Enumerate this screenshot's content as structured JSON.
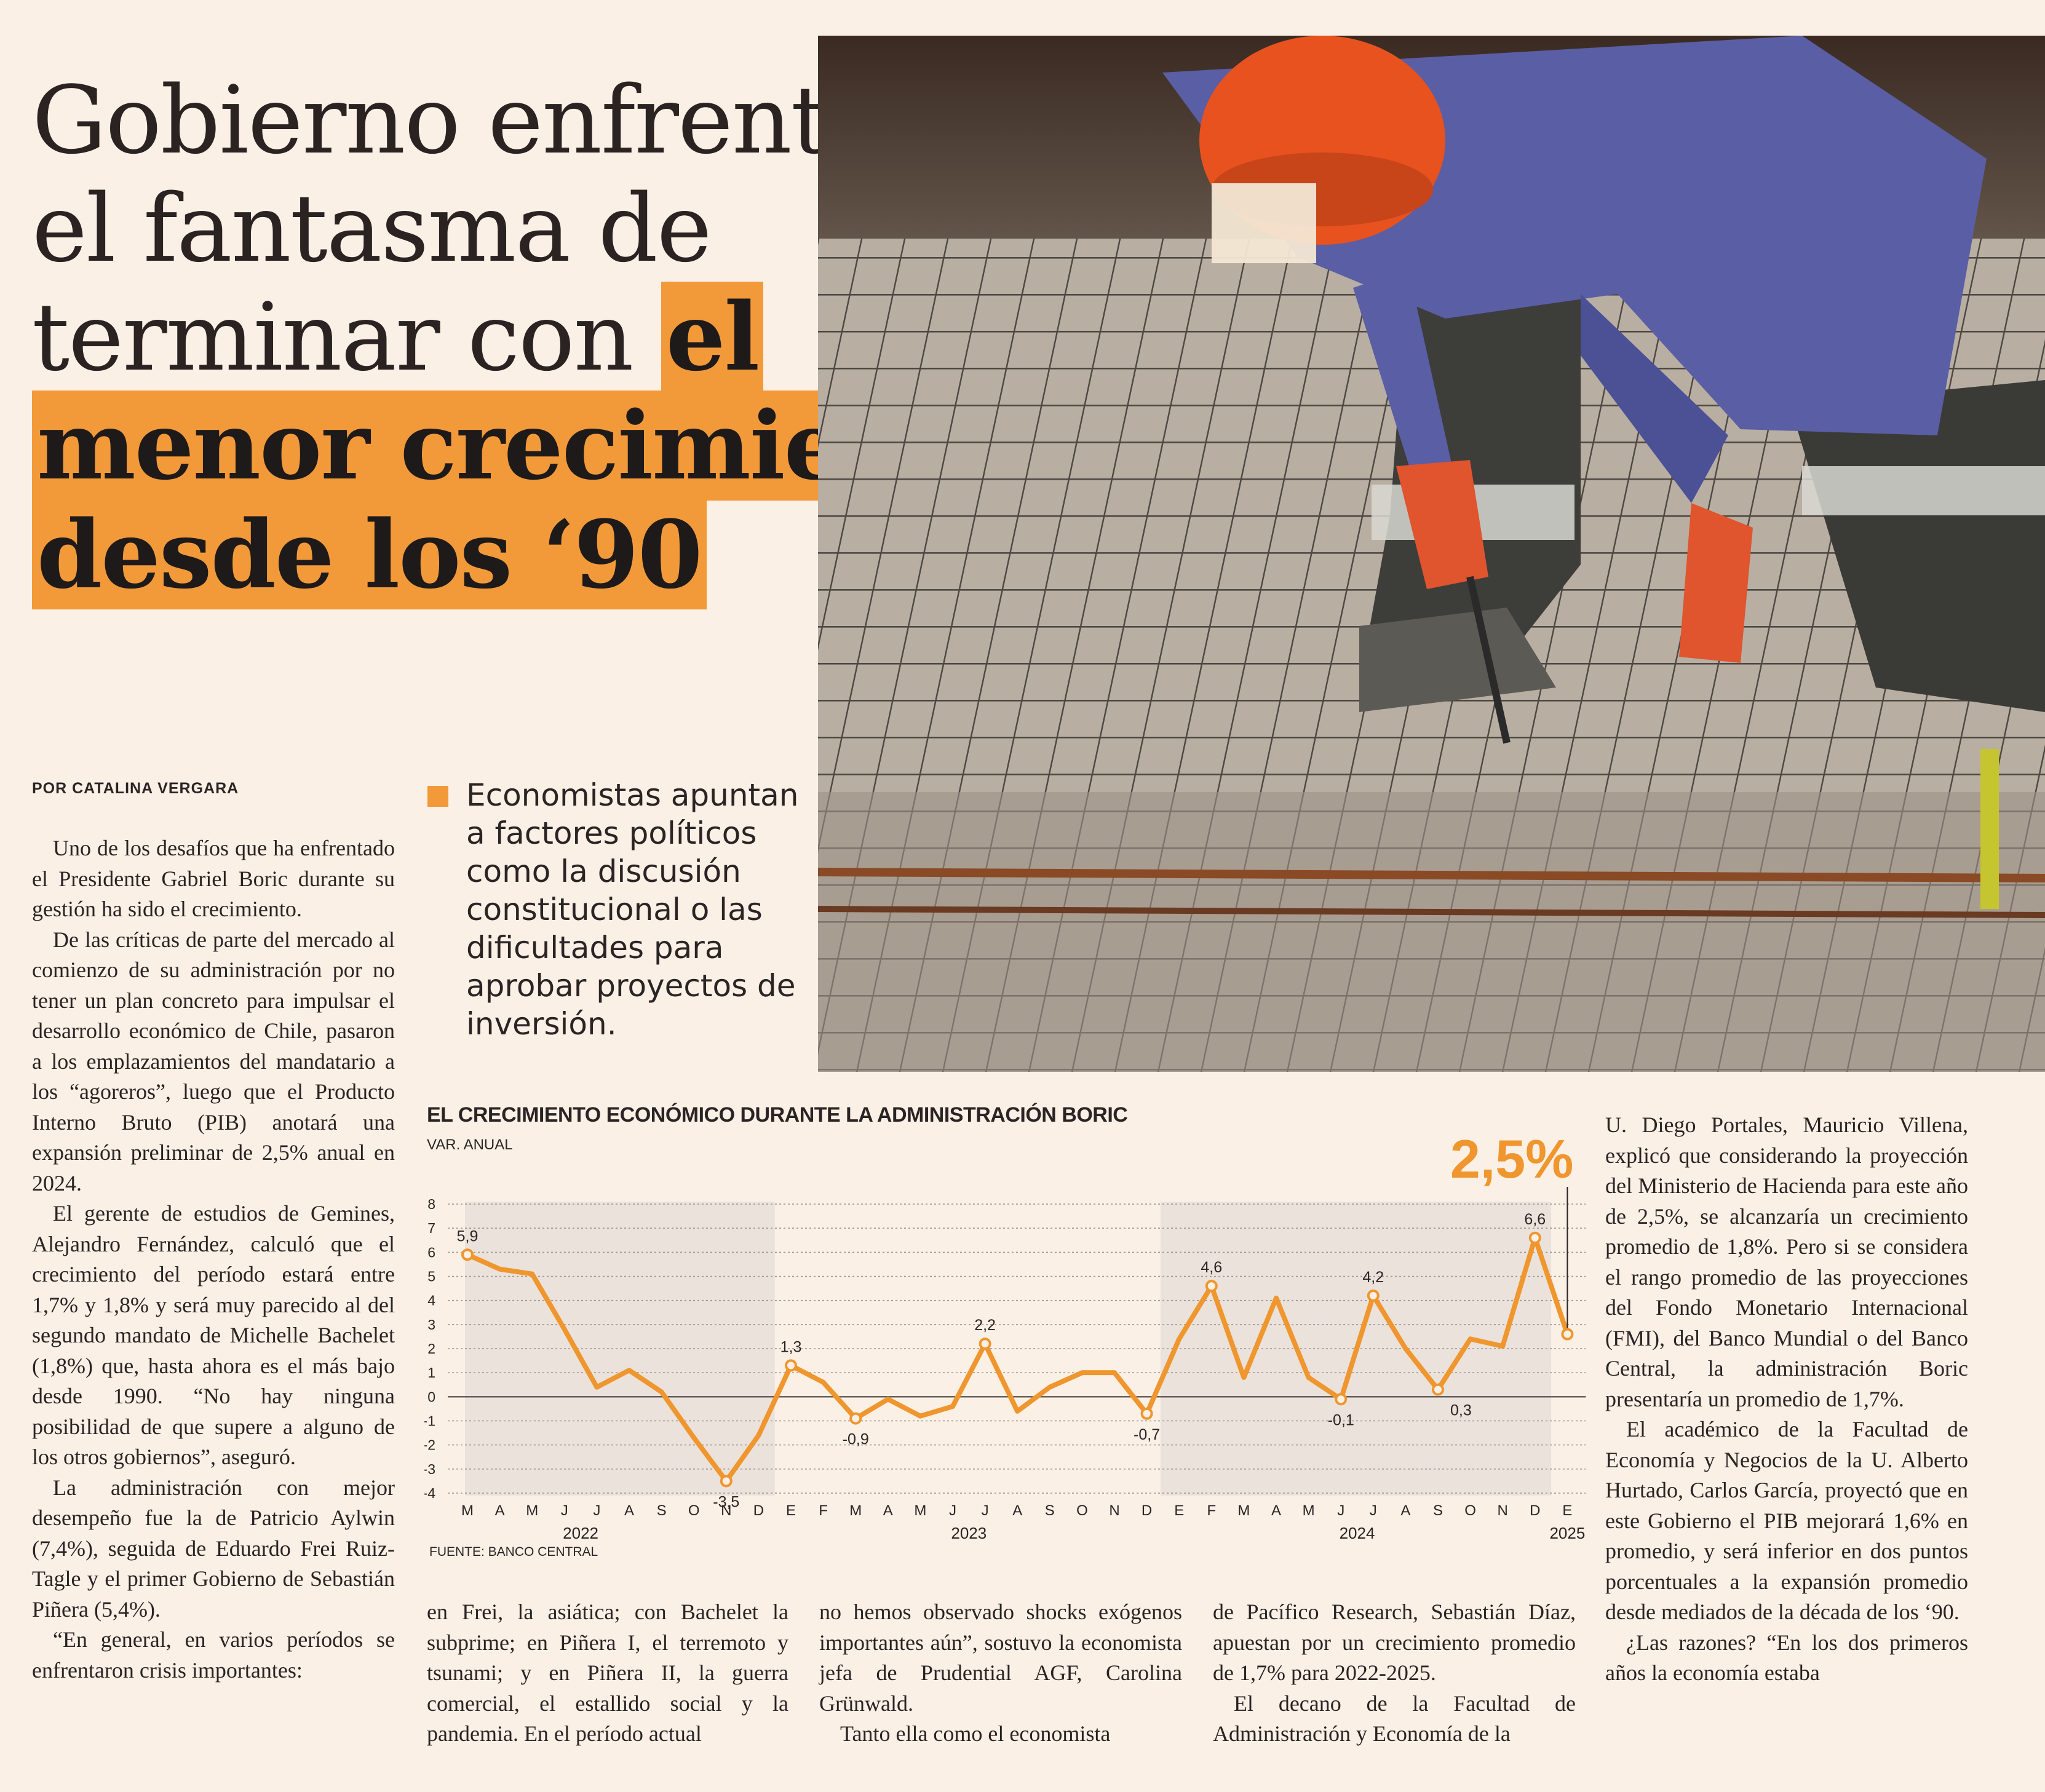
{
  "headline": {
    "line1": "Gobierno enfrenta",
    "line2": "el fantasma de",
    "line3_plain": "terminar con ",
    "line3_highlight": "el",
    "line4_highlight": "menor crecimiento",
    "line5_highlight": "desde los ‘90"
  },
  "byline": "POR CATALINA VERGARA",
  "pullquote": "Economistas apuntan a factores políticos como la discusión constitucional o las dificultades para aprobar proyectos de inversión.",
  "body": {
    "col1": [
      "Uno de los desafíos que ha enfrentado el Presidente Gabriel Boric durante su gestión ha sido el crecimiento.",
      "De las críticas de parte del mercado al comienzo de su administración por no tener un plan concreto para impulsar el desarrollo económico de Chile, pasaron a los emplazamientos del mandatario a los “agoreros”, luego que el Producto Interno Bruto (PIB) anotará una expansión preliminar de 2,5% anual en 2024.",
      "El gerente de estudios de Gemines, Alejandro Fernández, calculó que el crecimiento del período estará entre 1,7% y 1,8% y será muy parecido al del segundo mandato de Michelle Bachelet (1,8%) que, hasta ahora es el más bajo desde 1990. “No hay ninguna posibilidad de que supere a alguno de los otros gobiernos”, aseguró.",
      "La administración con mejor desempeño fue la de Patricio Aylwin (7,4%), seguida de Eduardo Frei Ruiz-Tagle y el primer Gobierno de Sebastián Piñera (5,4%).",
      "“En general, en varios períodos se enfrentaron crisis importantes:"
    ],
    "col2": [
      "en Frei, la asiática; con Bachelet la subprime; en Piñera I, el terremoto y tsunami; y en Piñera II, la guerra comercial, el estallido social y la pandemia. En el período actual"
    ],
    "col3": [
      "no hemos observado shocks exógenos importantes aún”, sostuvo la economista jefa de Prudential AGF, Carolina Grünwald.",
      "Tanto ella como el economista"
    ],
    "col4": [
      "de Pacífico Research, Sebastián Díaz, apuestan por un crecimiento promedio de 1,7% para 2022-2025.",
      "El decano de la Facultad de Administración y Economía de la"
    ],
    "col5": [
      "U. Diego Portales, Mauricio Villena, explicó que considerando la proyección del Ministerio de Hacienda para este año de 2,5%, se alcanzaría un crecimiento promedio de 1,8%. Pero si se considera el rango promedio de las proyecciones del Fondo Monetario Internacional (FMI), del Banco Mundial o del Banco Central, la administración Boric presentaría un promedio de 1,7%.",
      "El académico de la Facultad de Economía y Negocios de la U. Alberto Hurtado, Carlos García, proyectó que en este Gobierno el PIB mejorará 1,6% en promedio, y será inferior en dos puntos porcentuales a la expansión promedio desde mediados de la década de los ‘90.",
      "¿Las razones? “En los dos primeros años la economía estaba"
    ]
  },
  "chart_data": {
    "type": "line",
    "title": "EL CRECIMIENTO ECONÓMICO DURANTE LA ADMINISTRACIÓN BORIC",
    "subtitle": "VAR. ANUAL",
    "source": "FUENTE: BANCO CENTRAL",
    "highlight_value": "2,5%",
    "ylim": [
      -4,
      8
    ],
    "yticks": [
      "8",
      "7",
      "6",
      "5",
      "4",
      "3",
      "2",
      "1",
      "0",
      "-1",
      "-2",
      "-3",
      "-4"
    ],
    "month_labels": [
      "M",
      "A",
      "M",
      "J",
      "J",
      "A",
      "S",
      "O",
      "N",
      "D",
      "E",
      "F",
      "M",
      "A",
      "M",
      "J",
      "J",
      "A",
      "S",
      "O",
      "N",
      "D",
      "E",
      "F",
      "M",
      "A",
      "M",
      "J",
      "J",
      "A",
      "S",
      "O",
      "N",
      "D",
      "E"
    ],
    "year_labels": [
      {
        "label": "2022",
        "index": 3.5
      },
      {
        "label": "2023",
        "index": 15.5
      },
      {
        "label": "2024",
        "index": 27.5
      },
      {
        "label": "2025",
        "index": 34
      }
    ],
    "shaded_ranges": [
      [
        0,
        9.5
      ],
      [
        21.5,
        33.5
      ]
    ],
    "values": [
      5.9,
      5.3,
      5.1,
      2.8,
      0.4,
      1.1,
      0.2,
      -1.7,
      -3.5,
      -1.6,
      1.3,
      0.6,
      -0.9,
      -0.1,
      -0.8,
      -0.4,
      2.2,
      -0.6,
      0.4,
      1.0,
      1.0,
      -0.7,
      2.4,
      4.6,
      0.8,
      4.1,
      0.8,
      -0.1,
      4.2,
      2.0,
      0.3,
      2.4,
      2.1,
      6.6,
      2.6
    ],
    "point_labels": [
      {
        "index": 0,
        "text": "5,9"
      },
      {
        "index": 8,
        "text": "-3,5"
      },
      {
        "index": 10,
        "text": "1,3"
      },
      {
        "index": 12,
        "text": "-0,9"
      },
      {
        "index": 16,
        "text": "2,2"
      },
      {
        "index": 21,
        "text": "-0,7"
      },
      {
        "index": 23,
        "text": "4,6"
      },
      {
        "index": 27,
        "text": "-0,1"
      },
      {
        "index": 28,
        "text": "4,2"
      },
      {
        "index": 30,
        "text": "0,3"
      },
      {
        "index": 33,
        "text": "6,6"
      }
    ],
    "colors": {
      "line": "#f0962e",
      "shade": "#e3dbd5",
      "highlight": "#f0962e"
    }
  }
}
